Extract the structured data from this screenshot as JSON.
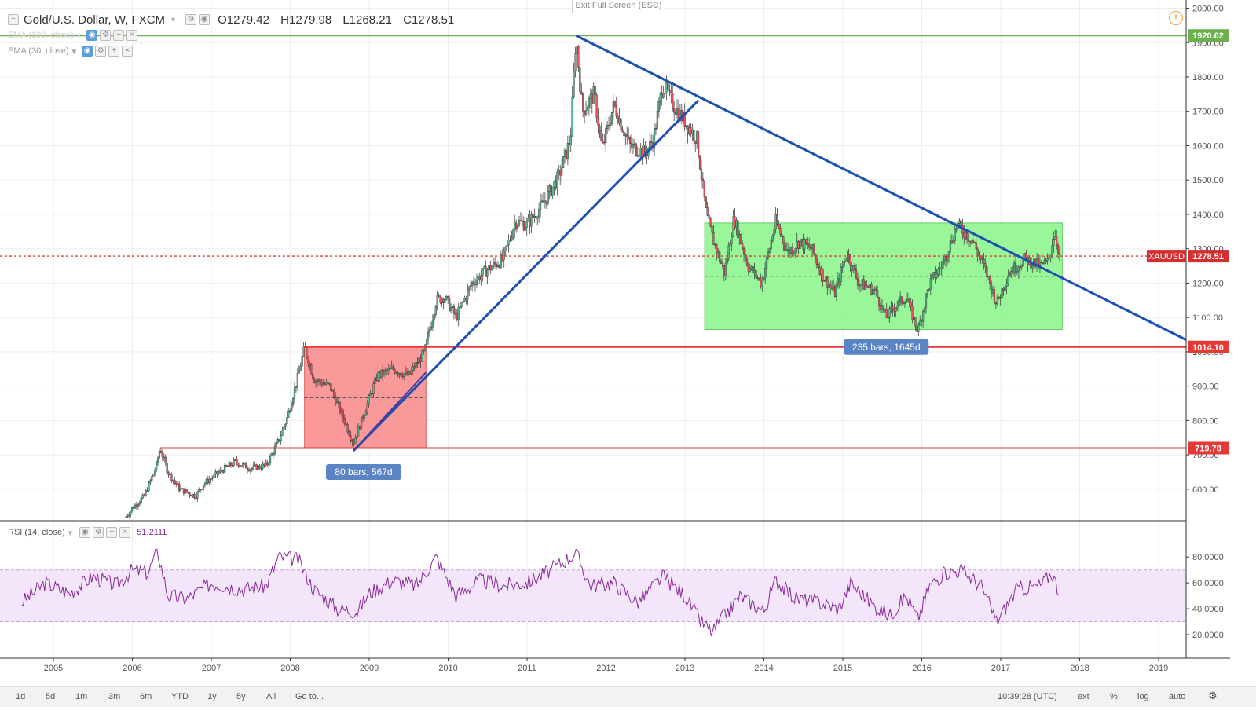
{
  "header": {
    "symbol": "Gold/U.S. Dollar, W, FXCM",
    "open": "O1279.42",
    "high": "H1279.98",
    "low": "L1268.21",
    "close": "C1278.51"
  },
  "indicators": {
    "ema1": "EMA (100, close)",
    "ema2": "EMA (30, close)",
    "rsi_label": "RSI (14, close)",
    "rsi_value": "51.2111"
  },
  "exit_fullscreen": "Exit Full Screen (ESC)",
  "colors": {
    "up": "#53b987",
    "down": "#eb4d5c",
    "trendline": "#1e50b4",
    "support": "#e53935",
    "resistance_top": "#6ab04c",
    "green_box": "#8ef58e",
    "red_box": "#f88e8e",
    "rsi_line": "#8a2a9a"
  },
  "bottom_bar": {
    "ranges": [
      "1d",
      "5d",
      "1m",
      "3m",
      "6m",
      "YTD",
      "1y",
      "5y",
      "All"
    ],
    "goto": "Go to...",
    "time": "10:39:28 (UTC)",
    "right_buttons": [
      "ext",
      "%",
      "log",
      "auto"
    ]
  },
  "chart_data": {
    "type": "candlestick",
    "title": "Gold/U.S. Dollar, W, FXCM",
    "x_tick_labels": [
      "2005",
      "2006",
      "2007",
      "2008",
      "2009",
      "2010",
      "2011",
      "2012",
      "2013",
      "2014",
      "2015",
      "2016",
      "2017",
      "2018",
      "2019"
    ],
    "y_tick_labels": [
      "2000.00",
      "1900.00",
      "1800.00",
      "1700.00",
      "1600.00",
      "1500.00",
      "1400.00",
      "1300.00",
      "1200.00",
      "1100.00",
      "1000.00",
      "900.00",
      "800.00",
      "700.00",
      "600.00"
    ],
    "ylim": [
      520,
      2005
    ],
    "price_path": [
      [
        2005.92,
        520
      ],
      [
        2006.0,
        545
      ],
      [
        2006.15,
        580
      ],
      [
        2006.3,
        665
      ],
      [
        2006.35,
        720
      ],
      [
        2006.45,
        650
      ],
      [
        2006.6,
        600
      ],
      [
        2006.8,
        580
      ],
      [
        2006.9,
        615
      ],
      [
        2007.1,
        650
      ],
      [
        2007.3,
        680
      ],
      [
        2007.5,
        660
      ],
      [
        2007.7,
        670
      ],
      [
        2007.85,
        740
      ],
      [
        2007.95,
        800
      ],
      [
        2008.1,
        930
      ],
      [
        2008.18,
        1014
      ],
      [
        2008.3,
        920
      ],
      [
        2008.5,
        900
      ],
      [
        2008.65,
        820
      ],
      [
        2008.8,
        735
      ],
      [
        2008.95,
        830
      ],
      [
        2009.1,
        930
      ],
      [
        2009.3,
        950
      ],
      [
        2009.5,
        930
      ],
      [
        2009.7,
        1000
      ],
      [
        2009.85,
        1150
      ],
      [
        2009.95,
        1160
      ],
      [
        2010.1,
        1100
      ],
      [
        2010.3,
        1200
      ],
      [
        2010.5,
        1240
      ],
      [
        2010.7,
        1270
      ],
      [
        2010.85,
        1380
      ],
      [
        2011.0,
        1370
      ],
      [
        2011.2,
        1430
      ],
      [
        2011.4,
        1510
      ],
      [
        2011.55,
        1620
      ],
      [
        2011.62,
        1920
      ],
      [
        2011.7,
        1700
      ],
      [
        2011.85,
        1750
      ],
      [
        2011.95,
        1590
      ],
      [
        2012.1,
        1720
      ],
      [
        2012.3,
        1600
      ],
      [
        2012.5,
        1580
      ],
      [
        2012.6,
        1620
      ],
      [
        2012.72,
        1780
      ],
      [
        2012.85,
        1720
      ],
      [
        2013.0,
        1670
      ],
      [
        2013.15,
        1620
      ],
      [
        2013.27,
        1400
      ],
      [
        2013.35,
        1330
      ],
      [
        2013.5,
        1230
      ],
      [
        2013.62,
        1390
      ],
      [
        2013.8,
        1250
      ],
      [
        2013.97,
        1200
      ],
      [
        2014.15,
        1380
      ],
      [
        2014.3,
        1290
      ],
      [
        2014.45,
        1320
      ],
      [
        2014.6,
        1300
      ],
      [
        2014.75,
        1220
      ],
      [
        2014.9,
        1170
      ],
      [
        2015.05,
        1290
      ],
      [
        2015.2,
        1200
      ],
      [
        2015.4,
        1180
      ],
      [
        2015.55,
        1100
      ],
      [
        2015.65,
        1130
      ],
      [
        2015.8,
        1160
      ],
      [
        2015.95,
        1060
      ],
      [
        2016.1,
        1200
      ],
      [
        2016.25,
        1250
      ],
      [
        2016.45,
        1370
      ],
      [
        2016.65,
        1320
      ],
      [
        2016.8,
        1240
      ],
      [
        2016.95,
        1140
      ],
      [
        2017.1,
        1230
      ],
      [
        2017.3,
        1270
      ],
      [
        2017.5,
        1250
      ],
      [
        2017.6,
        1260
      ],
      [
        2017.68,
        1350
      ],
      [
        2017.75,
        1278
      ]
    ],
    "rsi": {
      "ylim": [
        10,
        88
      ],
      "y_tick_labels": [
        "80.0000",
        "60.0000",
        "40.0000",
        "20.0000"
      ],
      "band": [
        30,
        70
      ],
      "path": [
        [
          2004.6,
          45
        ],
        [
          2004.9,
          60
        ],
        [
          2005.2,
          52
        ],
        [
          2005.5,
          65
        ],
        [
          2005.8,
          58
        ],
        [
          2006.0,
          70
        ],
        [
          2006.2,
          68
        ],
        [
          2006.32,
          85
        ],
        [
          2006.45,
          50
        ],
        [
          2006.7,
          48
        ],
        [
          2007.0,
          60
        ],
        [
          2007.4,
          55
        ],
        [
          2007.7,
          58
        ],
        [
          2007.85,
          80
        ],
        [
          2008.1,
          78
        ],
        [
          2008.3,
          55
        ],
        [
          2008.6,
          40
        ],
        [
          2008.85,
          38
        ],
        [
          2009.0,
          52
        ],
        [
          2009.3,
          62
        ],
        [
          2009.6,
          58
        ],
        [
          2009.85,
          80
        ],
        [
          2010.1,
          50
        ],
        [
          2010.4,
          62
        ],
        [
          2010.7,
          58
        ],
        [
          2011.0,
          60
        ],
        [
          2011.3,
          70
        ],
        [
          2011.62,
          83
        ],
        [
          2011.8,
          58
        ],
        [
          2012.1,
          60
        ],
        [
          2012.4,
          45
        ],
        [
          2012.72,
          65
        ],
        [
          2013.0,
          50
        ],
        [
          2013.2,
          30
        ],
        [
          2013.35,
          22
        ],
        [
          2013.5,
          35
        ],
        [
          2013.7,
          50
        ],
        [
          2014.0,
          38
        ],
        [
          2014.15,
          62
        ],
        [
          2014.4,
          48
        ],
        [
          2014.7,
          45
        ],
        [
          2014.95,
          40
        ],
        [
          2015.1,
          60
        ],
        [
          2015.4,
          42
        ],
        [
          2015.6,
          35
        ],
        [
          2015.8,
          50
        ],
        [
          2015.95,
          32
        ],
        [
          2016.1,
          58
        ],
        [
          2016.3,
          68
        ],
        [
          2016.5,
          70
        ],
        [
          2016.75,
          58
        ],
        [
          2016.95,
          30
        ],
        [
          2017.2,
          55
        ],
        [
          2017.5,
          58
        ],
        [
          2017.65,
          68
        ],
        [
          2017.75,
          51.2
        ]
      ]
    },
    "horizontal_levels": [
      {
        "value": 1920.62,
        "label": "1920.62"
      },
      {
        "value": 1014.1,
        "label": "1014.10"
      },
      {
        "value": 719.78,
        "label": "719.78"
      },
      {
        "value": 1278.51,
        "label": "1278.51",
        "tag": "XAUUSD"
      }
    ],
    "ranges": [
      {
        "label": "80 bars, 567d"
      },
      {
        "label": "235 bars, 1645d"
      }
    ]
  }
}
